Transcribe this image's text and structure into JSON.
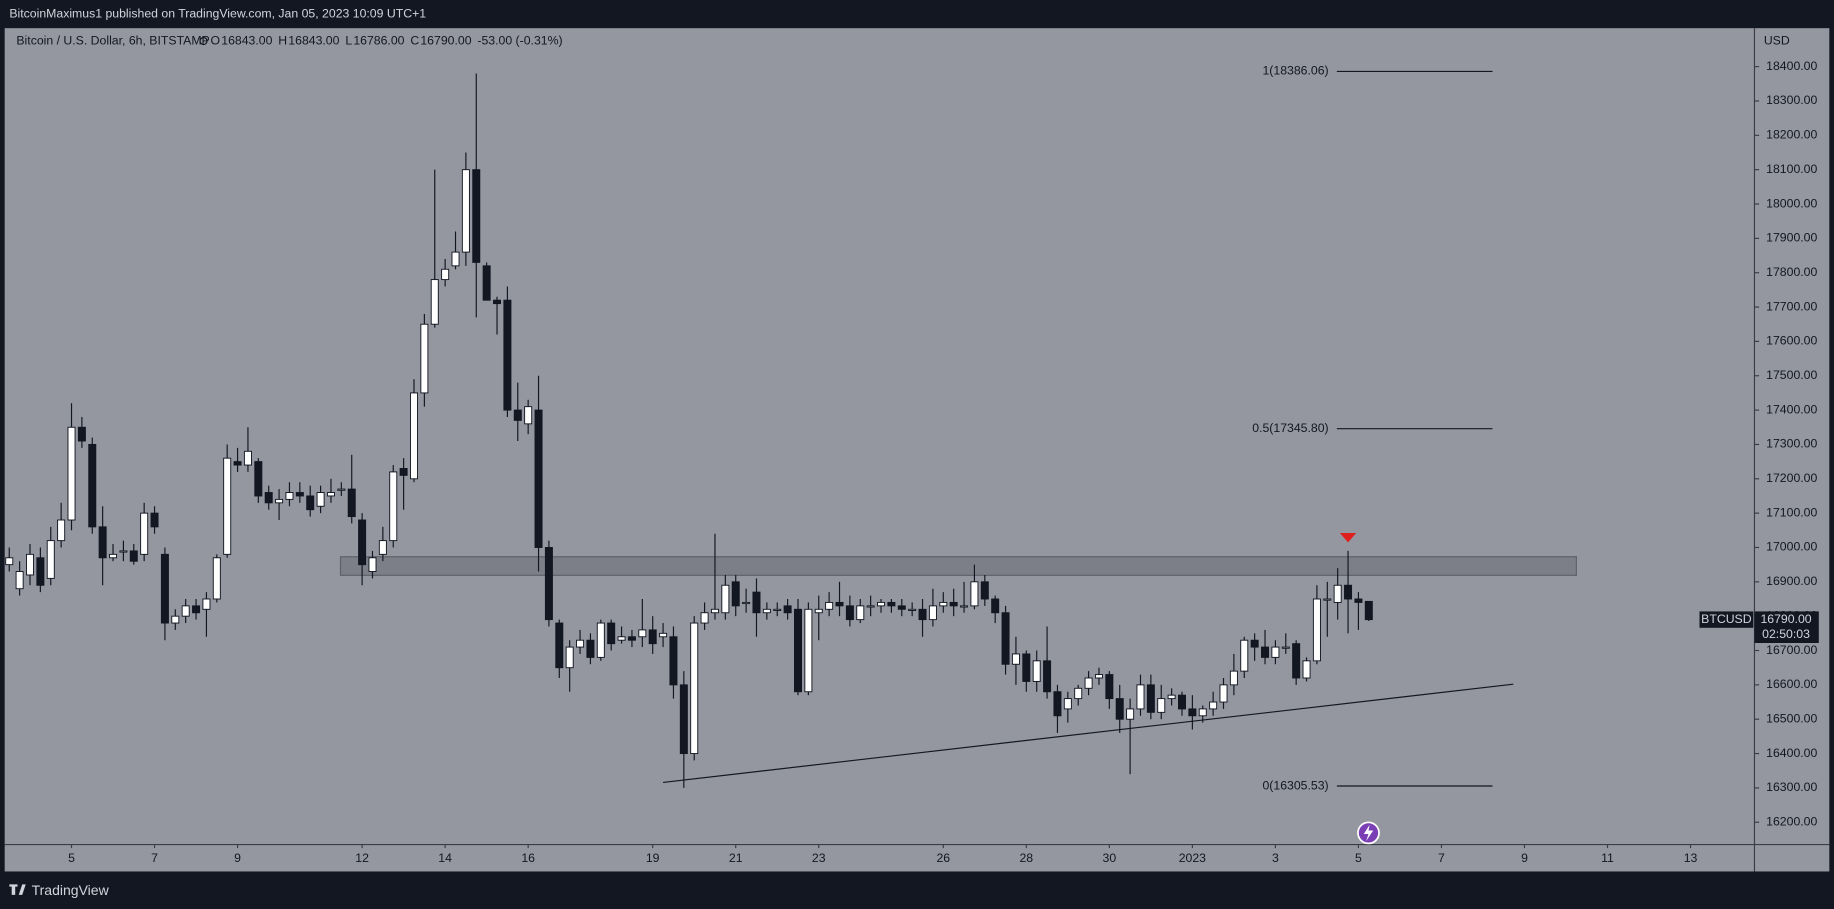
{
  "header": {
    "published": "BitcoinMaximus1 published on TradingView.com, Jan 05, 2023 10:09 UTC+1",
    "symbol": "Bitcoin / U.S. Dollar, 6h, BITSTAMP",
    "ohlc": [
      {
        "label": "O",
        "value": "16843.00"
      },
      {
        "label": "H",
        "value": "16843.00"
      },
      {
        "label": "L",
        "value": "16786.00"
      },
      {
        "label": "C",
        "value": "16790.00"
      }
    ],
    "change": "-53.00 (-0.31%)"
  },
  "footer": {
    "brand": "TradingView"
  },
  "chart_data": {
    "type": "candlestick",
    "currency": "USD",
    "ticker": "BTCUSD",
    "last_price_label": {
      "value": 16790,
      "label": "16790.00"
    },
    "countdown": "02:50:03",
    "xlim": [
      3.39,
      45.54
    ],
    "ylim": [
      16135,
      18512
    ],
    "xticks": [
      5,
      7,
      9,
      12,
      14,
      16,
      19,
      21,
      23,
      26,
      28,
      30,
      {
        "value": 32,
        "label": "2023"
      },
      {
        "value": 34,
        "label": "3"
      },
      {
        "value": 36,
        "label": "5"
      },
      {
        "value": 38,
        "label": "7"
      },
      {
        "value": 40,
        "label": "9"
      },
      {
        "value": 42,
        "label": "11"
      },
      {
        "value": 44,
        "label": "13"
      }
    ],
    "yticks": [
      {
        "value": 16200,
        "label": "16200.00"
      },
      {
        "value": 16300,
        "label": "16300.00"
      },
      {
        "value": 16400,
        "label": "16400.00"
      },
      {
        "value": 16500,
        "label": "16500.00"
      },
      {
        "value": 16600,
        "label": "16600.00"
      },
      {
        "value": 16700,
        "label": "16700.00"
      },
      {
        "value": 16800,
        "label": "16800.00"
      },
      {
        "value": 16900,
        "label": "16900.00"
      },
      {
        "value": 17000,
        "label": "17000.00"
      },
      {
        "value": 17100,
        "label": "17100.00"
      },
      {
        "value": 17200,
        "label": "17200.00"
      },
      {
        "value": 17300,
        "label": "17300.00"
      },
      {
        "value": 17400,
        "label": "17400.00"
      },
      {
        "value": 17500,
        "label": "17500.00"
      },
      {
        "value": 17600,
        "label": "17600.00"
      },
      {
        "value": 17700,
        "label": "17700.00"
      },
      {
        "value": 17800,
        "label": "17800.00"
      },
      {
        "value": 17900,
        "label": "17900.00"
      },
      {
        "value": 18000,
        "label": "18000.00"
      },
      {
        "value": 18100,
        "label": "18100.00"
      },
      {
        "value": 18200,
        "label": "18200.00"
      },
      {
        "value": 18300,
        "label": "18300.00"
      },
      {
        "value": 18400,
        "label": "18400.00"
      }
    ],
    "up_color": "#ffffff",
    "down_color": "#131722",
    "x": [
      3.5,
      3.75,
      4,
      4.25,
      4.5,
      4.75,
      5,
      5.25,
      5.5,
      5.75,
      6,
      6.25,
      6.5,
      6.75,
      7,
      7.25,
      7.5,
      7.75,
      8,
      8.25,
      8.5,
      8.75,
      9,
      9.25,
      9.5,
      9.75,
      10,
      10.25,
      10.5,
      10.75,
      11,
      11.25,
      11.5,
      11.75,
      12,
      12.25,
      12.5,
      12.75,
      13,
      13.25,
      13.5,
      13.75,
      14,
      14.25,
      14.5,
      14.75,
      15,
      15.25,
      15.5,
      15.75,
      16,
      16.25,
      16.5,
      16.75,
      17,
      17.25,
      17.5,
      17.75,
      18,
      18.25,
      18.5,
      18.75,
      19,
      19.25,
      19.5,
      19.75,
      20,
      20.25,
      20.5,
      20.75,
      21,
      21.25,
      21.5,
      21.75,
      22,
      22.25,
      22.5,
      22.75,
      23,
      23.25,
      23.5,
      23.75,
      24,
      24.25,
      24.5,
      24.75,
      25,
      25.25,
      25.5,
      25.75,
      26,
      26.25,
      26.5,
      26.75,
      27,
      27.25,
      27.5,
      27.75,
      28,
      28.25,
      28.5,
      28.75,
      29,
      29.25,
      29.5,
      29.75,
      30,
      30.25,
      30.5,
      30.75,
      31,
      31.25,
      31.5,
      31.75,
      32,
      32.25,
      32.5,
      32.75,
      33,
      33.25,
      33.5,
      33.75,
      34,
      34.25,
      34.5,
      34.75,
      35,
      35.25,
      35.5,
      35.75,
      36,
      36.25
    ],
    "open": [
      16950,
      16880,
      16920,
      16970,
      16910,
      17020,
      17080,
      17350,
      17300,
      17060,
      16970,
      16990,
      16990,
      16980,
      17100,
      16980,
      16780,
      16800,
      16830,
      16820,
      16850,
      16980,
      17250,
      17240,
      17250,
      17160,
      17130,
      17140,
      17160,
      17150,
      17120,
      17150,
      17170,
      17170,
      17080,
      16930,
      16980,
      17020,
      17230,
      17200,
      17450,
      17650,
      17780,
      17820,
      17860,
      18100,
      17820,
      17720,
      17720,
      17400,
      17360,
      17400,
      17000,
      16780,
      16650,
      16710,
      16730,
      16680,
      16780,
      16730,
      16740,
      16740,
      16760,
      16740,
      16740,
      16600,
      16400,
      16780,
      16810,
      16810,
      16900,
      16840,
      16870,
      16810,
      16820,
      16830,
      16820,
      16580,
      16810,
      16820,
      16840,
      16830,
      16790,
      16830,
      16830,
      16840,
      16830,
      16820,
      16820,
      16790,
      16830,
      16840,
      16830,
      16830,
      16900,
      16850,
      16810,
      16660,
      16690,
      16610,
      16670,
      16580,
      16530,
      16560,
      16590,
      16620,
      16630,
      16560,
      16500,
      16530,
      16600,
      16520,
      16560,
      16570,
      16530,
      16510,
      16530,
      16550,
      16600,
      16640,
      16730,
      16710,
      16680,
      16710,
      16720,
      16620,
      16670,
      16850,
      16840,
      16890,
      16850,
      16843
    ],
    "high": [
      17000,
      16960,
      17010,
      17000,
      17060,
      17130,
      17420,
      17380,
      17320,
      17120,
      17010,
      17020,
      17010,
      17130,
      17120,
      17000,
      16820,
      16850,
      16850,
      16870,
      16980,
      17300,
      17290,
      17350,
      17260,
      17180,
      17170,
      17190,
      17190,
      17180,
      17180,
      17200,
      17190,
      17270,
      17100,
      16990,
      17060,
      17240,
      17260,
      17490,
      17680,
      18100,
      17840,
      17920,
      18150,
      18380,
      17830,
      17730,
      17760,
      17480,
      17430,
      17500,
      17020,
      16790,
      16730,
      16760,
      16750,
      16790,
      16790,
      16770,
      16760,
      16850,
      16800,
      16780,
      16770,
      16640,
      16800,
      16840,
      17040,
      16920,
      16920,
      16880,
      16910,
      16840,
      16840,
      16850,
      16850,
      16840,
      16860,
      16870,
      16900,
      16860,
      16850,
      16860,
      16850,
      16850,
      16850,
      16840,
      16850,
      16880,
      16870,
      16880,
      16900,
      16950,
      16920,
      16860,
      16830,
      16740,
      16700,
      16700,
      16770,
      16600,
      16580,
      16600,
      16640,
      16650,
      16640,
      16600,
      16560,
      16630,
      16630,
      16600,
      16590,
      16580,
      16570,
      16540,
      16580,
      16620,
      16690,
      16740,
      16750,
      16760,
      16730,
      16750,
      16730,
      16680,
      16890,
      16900,
      16940,
      16990,
      16870,
      16843
    ],
    "low": [
      16930,
      16860,
      16890,
      16870,
      16890,
      17000,
      17050,
      17290,
      17040,
      16890,
      16960,
      16960,
      16950,
      16960,
      17040,
      16730,
      16760,
      16780,
      16790,
      16740,
      16840,
      16970,
      17220,
      17220,
      17130,
      17110,
      17080,
      17120,
      17130,
      17090,
      17100,
      17130,
      17150,
      17070,
      16890,
      16910,
      16960,
      17000,
      17110,
      17190,
      17410,
      17640,
      17760,
      17810,
      17820,
      17670,
      17720,
      17620,
      17380,
      17310,
      17330,
      16930,
      16770,
      16620,
      16580,
      16690,
      16660,
      16670,
      16700,
      16720,
      16710,
      16710,
      16690,
      16710,
      16560,
      16300,
      16380,
      16760,
      16790,
      16790,
      16800,
      16810,
      16740,
      16790,
      16800,
      16790,
      16570,
      16570,
      16730,
      16800,
      16800,
      16770,
      16780,
      16800,
      16810,
      16810,
      16800,
      16800,
      16740,
      16770,
      16810,
      16800,
      16810,
      16820,
      16830,
      16780,
      16630,
      16600,
      16580,
      16580,
      16560,
      16460,
      16490,
      16540,
      16570,
      16600,
      16530,
      16460,
      16340,
      16510,
      16500,
      16500,
      16540,
      16510,
      16470,
      16490,
      16510,
      16530,
      16570,
      16620,
      16670,
      16660,
      16660,
      16690,
      16600,
      16610,
      16660,
      16740,
      16790,
      16750,
      16760,
      16786
    ],
    "close": [
      16970,
      16930,
      16980,
      16890,
      17020,
      17080,
      17350,
      17310,
      17060,
      16970,
      16980,
      16990,
      16960,
      17100,
      17060,
      16780,
      16800,
      16830,
      16810,
      16850,
      16970,
      17260,
      17240,
      17280,
      17150,
      17130,
      17140,
      17160,
      17150,
      17110,
      17160,
      17160,
      17170,
      17090,
      16950,
      16970,
      17020,
      17220,
      17210,
      17450,
      17650,
      17780,
      17810,
      17860,
      18100,
      17830,
      17720,
      17710,
      17400,
      17370,
      17410,
      17000,
      16790,
      16650,
      16710,
      16730,
      16680,
      16780,
      16720,
      16740,
      16730,
      16760,
      16720,
      16750,
      16600,
      16400,
      16780,
      16810,
      16820,
      16890,
      16830,
      16840,
      16810,
      16820,
      16820,
      16810,
      16580,
      16820,
      16820,
      16840,
      16830,
      16790,
      16830,
      16830,
      16840,
      16830,
      16820,
      16820,
      16790,
      16830,
      16840,
      16830,
      16830,
      16900,
      16850,
      16810,
      16660,
      16690,
      16610,
      16670,
      16580,
      16510,
      16560,
      16590,
      16620,
      16630,
      16560,
      16500,
      16530,
      16600,
      16520,
      16560,
      16570,
      16530,
      16510,
      16530,
      16550,
      16600,
      16640,
      16730,
      16710,
      16680,
      16710,
      16710,
      16620,
      16670,
      16850,
      16850,
      16890,
      16850,
      16840,
      16790
    ],
    "fib_levels": [
      {
        "label": "1(18386.06)",
        "price": 18386.06
      },
      {
        "label": "0.5(17345.80)",
        "price": 17345.8
      },
      {
        "label": "0(16305.53)",
        "price": 16305.53
      }
    ],
    "fib_x": [
      35.48,
      39.23
    ],
    "zone": {
      "x": [
        11.48,
        41.25
      ],
      "y": [
        16919,
        16973
      ]
    },
    "trendline": {
      "x": [
        19.25,
        39.73
      ],
      "y": [
        16316,
        16602
      ]
    },
    "marker": {
      "x": 35.75,
      "y": 17025,
      "color": "#e0201e"
    }
  }
}
